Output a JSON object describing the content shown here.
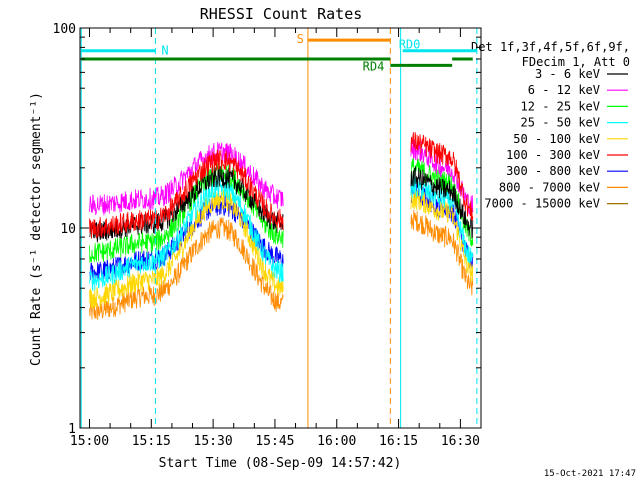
{
  "chart_data": {
    "type": "line",
    "title": "RHESSI Count Rates",
    "xlabel": "Start Time (08-Sep-09 14:57:42)",
    "ylabel": "Count Rate (s⁻¹ detector segment⁻¹)",
    "yscale": "log",
    "ylim": [
      1,
      100
    ],
    "y_ticks": [
      "1",
      "10",
      "100"
    ],
    "xlim": [
      "14:57:42",
      "16:35:00"
    ],
    "x_ticks": [
      "15:00",
      "15:15",
      "15:30",
      "15:45",
      "16:00",
      "16:15",
      "16:30"
    ],
    "legend_header": [
      "Det 1f,3f,4f,5f,6f,9f,",
      "FDecim 1, Att 0"
    ],
    "legend_position": "right",
    "series": [
      {
        "name": "3 - 6 keV",
        "color": "#000000",
        "values_by_time": {
          "15:00": 9.5,
          "15:15": 10.5,
          "15:32": 18,
          "15:47": 10.5,
          "16:18": 18,
          "16:27": 15.5,
          "16:33": 10
        }
      },
      {
        "name": "6 - 12 keV",
        "color": "#ff00ff",
        "values_by_time": {
          "15:00": 13,
          "15:15": 14,
          "15:32": 24,
          "15:47": 14,
          "16:18": 25,
          "16:27": 20,
          "16:33": 13
        }
      },
      {
        "name": "12 - 25 keV",
        "color": "#00ff00",
        "values_by_time": {
          "15:00": 7.5,
          "15:15": 8.5,
          "15:32": 19,
          "15:47": 9,
          "16:18": 20,
          "16:27": 17,
          "16:33": 9
        }
      },
      {
        "name": "25 - 50 keV",
        "color": "#00ffff",
        "values_by_time": {
          "15:00": 5.5,
          "15:15": 6.8,
          "15:32": 16,
          "15:47": 6,
          "16:18": 16,
          "16:27": 14,
          "16:33": 7
        }
      },
      {
        "name": "50 - 100 keV",
        "color": "#ffd700",
        "values_by_time": {
          "15:00": 4.5,
          "15:15": 5.5,
          "15:32": 14,
          "15:47": 5,
          "16:18": 14,
          "16:27": 12,
          "16:33": 6
        }
      },
      {
        "name": "100 - 300 keV",
        "color": "#ff0000",
        "values_by_time": {
          "15:00": 10,
          "15:15": 11,
          "15:32": 22,
          "15:47": 11,
          "16:18": 27,
          "16:27": 23,
          "16:33": 12
        }
      },
      {
        "name": "300 - 800 keV",
        "color": "#0000ff",
        "values_by_time": {
          "15:00": 6,
          "15:15": 7,
          "15:32": 13,
          "15:47": 7,
          "16:18": 15,
          "16:27": 12.5,
          "16:33": 7
        }
      },
      {
        "name": "800 - 7000 keV",
        "color": "#ff8c00",
        "values_by_time": {
          "15:00": 3.8,
          "15:15": 4.6,
          "15:32": 10,
          "15:47": 4.2,
          "16:18": 11,
          "16:27": 9,
          "16:33": 5
        }
      },
      {
        "name": "7000 - 15000 keV",
        "color": "#a07000",
        "values_by_time": {}
      }
    ],
    "annotations": [
      {
        "text": "N",
        "color": "#00e5ee",
        "from": "14:58",
        "to": "15:16",
        "y": 77
      },
      {
        "text": "S",
        "color": "#ff8c00",
        "from": "15:53",
        "to": "16:13",
        "y": 87
      },
      {
        "text": "RD0",
        "color": "#00e5ee",
        "from": "16:16",
        "to": "16:34",
        "y": 77
      },
      {
        "text": "RD4",
        "color": "#008000",
        "from": "16:13",
        "to": "16:28",
        "y": 65
      },
      {
        "text": "",
        "color": "#008000",
        "from": "14:58",
        "to": "16:13",
        "y": 70
      },
      {
        "text": "",
        "color": "#008000",
        "from": "16:28",
        "to": "16:33",
        "y": 70
      }
    ],
    "vertical_lines": [
      {
        "time": "14:58",
        "color": "#00e5ee",
        "style": "solid"
      },
      {
        "time": "15:16",
        "color": "#00e5ee",
        "style": "dashed"
      },
      {
        "time": "15:53",
        "color": "#ff8c00",
        "style": "solid"
      },
      {
        "time": "16:13",
        "color": "#ff8c00",
        "style": "dashed"
      },
      {
        "time": "16:15:30",
        "color": "#00e5ee",
        "style": "solid"
      },
      {
        "time": "16:34",
        "color": "#00e5ee",
        "style": "dashed"
      }
    ],
    "data_gap": {
      "from": "15:48",
      "to": "16:15:30"
    },
    "timestamp": "15-Oct-2021 17:47"
  }
}
